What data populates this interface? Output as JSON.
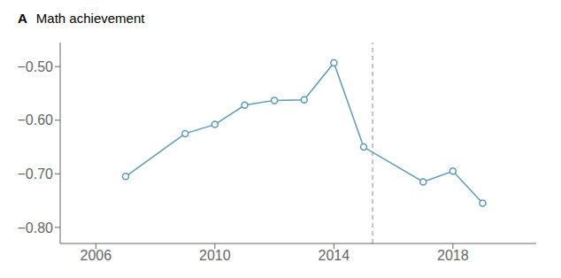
{
  "chart_data": {
    "type": "line",
    "panel_label": "A",
    "title": "Math achievement",
    "x": [
      2007,
      2009,
      2010,
      2011,
      2012,
      2013,
      2014,
      2015,
      2017,
      2018,
      2019
    ],
    "values": [
      -0.705,
      -0.625,
      -0.608,
      -0.572,
      -0.563,
      -0.562,
      -0.493,
      -0.65,
      -0.715,
      -0.695,
      -0.755
    ],
    "color": "#5b9ab5",
    "marker": "circle",
    "xlim": [
      2004.8,
      2020.8
    ],
    "xticks": [
      2006,
      2010,
      2014,
      2018
    ],
    "ylim": [
      -0.83,
      -0.455
    ],
    "yticks": [
      {
        "value": -0.5,
        "label": "−0.50"
      },
      {
        "value": -0.6,
        "label": "−0.60"
      },
      {
        "value": -0.7,
        "label": "−0.70"
      },
      {
        "value": -0.8,
        "label": "−0.80"
      }
    ],
    "grid": false,
    "reference_lines": [
      {
        "x": 2015.3,
        "color": "#888888",
        "line_style": "dashed"
      }
    ]
  }
}
